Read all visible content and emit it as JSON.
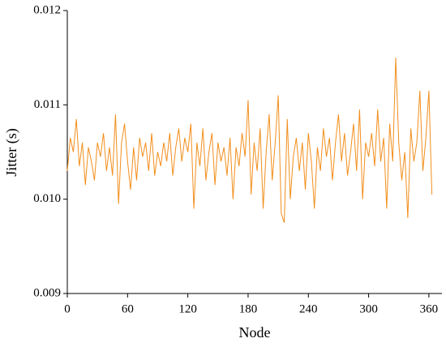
{
  "chart_data": {
    "type": "line",
    "xlabel": "Node",
    "ylabel": "Jitter (s)",
    "x": [
      0,
      3,
      6,
      9,
      12,
      15,
      18,
      21,
      24,
      27,
      30,
      33,
      36,
      39,
      42,
      45,
      48,
      51,
      54,
      57,
      60,
      63,
      66,
      69,
      72,
      75,
      78,
      81,
      84,
      87,
      90,
      93,
      96,
      99,
      102,
      105,
      108,
      111,
      114,
      117,
      120,
      123,
      126,
      129,
      132,
      135,
      138,
      141,
      144,
      147,
      150,
      153,
      156,
      159,
      162,
      165,
      168,
      171,
      174,
      177,
      180,
      183,
      186,
      189,
      192,
      195,
      198,
      201,
      204,
      207,
      210,
      213,
      216,
      219,
      222,
      225,
      228,
      231,
      234,
      237,
      240,
      243,
      246,
      249,
      252,
      255,
      258,
      261,
      264,
      267,
      270,
      273,
      276,
      279,
      282,
      285,
      288,
      291,
      294,
      297,
      300,
      303,
      306,
      309,
      312,
      315,
      318,
      321,
      324,
      327,
      330,
      333,
      336,
      339,
      342,
      345,
      348,
      351,
      354,
      357,
      360,
      363
    ],
    "series": [
      {
        "name": "Jitter",
        "color": "#f28e1c",
        "values": [
          0.0103,
          0.01065,
          0.0105,
          0.01085,
          0.01035,
          0.0106,
          0.01015,
          0.01055,
          0.0104,
          0.0102,
          0.0106,
          0.01045,
          0.0107,
          0.0103,
          0.01055,
          0.01025,
          0.0109,
          0.00995,
          0.0106,
          0.0108,
          0.0104,
          0.0101,
          0.01055,
          0.0102,
          0.01065,
          0.01045,
          0.0106,
          0.0103,
          0.0107,
          0.01025,
          0.0105,
          0.01035,
          0.0106,
          0.0104,
          0.0107,
          0.01025,
          0.01055,
          0.01075,
          0.0104,
          0.01065,
          0.0105,
          0.0108,
          0.0099,
          0.0106,
          0.01035,
          0.01075,
          0.0102,
          0.0105,
          0.0107,
          0.01015,
          0.0106,
          0.0104,
          0.01055,
          0.01025,
          0.01065,
          0.01,
          0.01055,
          0.01035,
          0.0107,
          0.01045,
          0.01105,
          0.01005,
          0.0106,
          0.0103,
          0.01075,
          0.0099,
          0.0105,
          0.0109,
          0.0102,
          0.0106,
          0.0111,
          0.00985,
          0.00975,
          0.01085,
          0.01,
          0.01045,
          0.01065,
          0.0103,
          0.0106,
          0.0101,
          0.0107,
          0.0104,
          0.0099,
          0.01055,
          0.0103,
          0.01075,
          0.01045,
          0.01065,
          0.0102,
          0.0106,
          0.0109,
          0.0104,
          0.0107,
          0.01025,
          0.0105,
          0.0108,
          0.0103,
          0.01095,
          0.01,
          0.0106,
          0.01045,
          0.0107,
          0.01035,
          0.01095,
          0.0104,
          0.01065,
          0.0099,
          0.0108,
          0.0104,
          0.0115,
          0.0106,
          0.0102,
          0.0105,
          0.0098,
          0.01075,
          0.0104,
          0.0106,
          0.01115,
          0.0103,
          0.01065,
          0.01115,
          0.01005
        ]
      }
    ],
    "xlim": [
      0,
      373
    ],
    "xticks": [
      0,
      60,
      120,
      180,
      240,
      300,
      360
    ],
    "ylim": [
      0.009,
      0.012
    ],
    "yticks": [
      0.009,
      {
        "value": 0.01,
        "label": "0.010"
      },
      0.011,
      0.012
    ]
  }
}
